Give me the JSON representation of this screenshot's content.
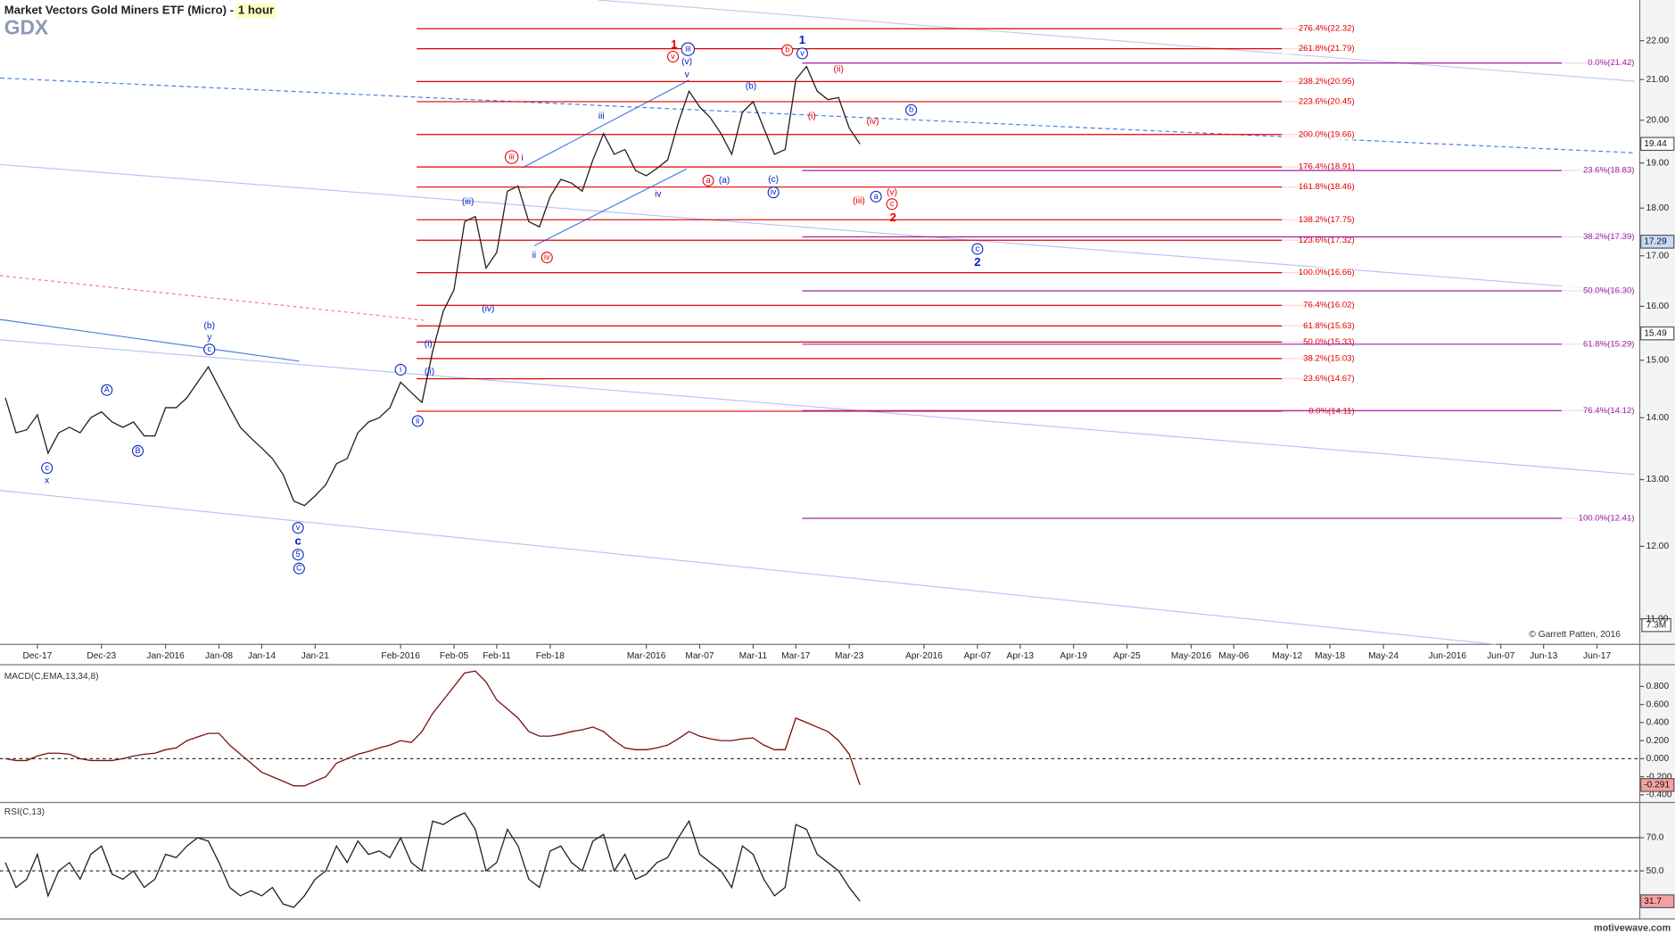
{
  "chart_data": [
    {
      "type": "line",
      "title": "Market Vectors Gold Miners ETF (Micro) -",
      "timeframe": "1 hour",
      "symbol": "GDX",
      "copyright": "© Garrett Patten, 2016",
      "watermark": "motivewave.com",
      "volume_label": "7.3M",
      "color": "#222222",
      "log_scale": true,
      "ylim": [
        10.67,
        23.1
      ],
      "yticks": [
        {
          "value": 22,
          "label": "22.00"
        },
        {
          "value": 21,
          "label": "21.00"
        },
        {
          "value": 20,
          "label": "20.00"
        },
        {
          "value": 19,
          "label": "19.00"
        },
        {
          "value": 18,
          "label": "18.00"
        },
        {
          "value": 17,
          "label": "17.00"
        },
        {
          "value": 16,
          "label": "16.00"
        },
        {
          "value": 15,
          "label": "15.00"
        },
        {
          "value": 14,
          "label": "14.00"
        },
        {
          "value": 13,
          "label": "13.00"
        },
        {
          "value": 12,
          "label": "12.00"
        },
        {
          "value": 11,
          "label": "11.00"
        }
      ],
      "categories": [
        null,
        null,
        null,
        "Dec-17",
        null,
        null,
        null,
        null,
        null,
        "Dec-23",
        null,
        null,
        null,
        null,
        null,
        "Jan-2016",
        null,
        null,
        null,
        null,
        "Jan-08",
        null,
        null,
        null,
        "Jan-14",
        null,
        null,
        null,
        null,
        "Jan-21",
        null,
        null,
        null,
        null,
        null,
        null,
        null,
        "Feb-2016",
        null,
        null,
        null,
        null,
        "Feb-05",
        null,
        null,
        null,
        "Feb-11",
        null,
        null,
        null,
        null,
        "Feb-18",
        null,
        null,
        null,
        null,
        null,
        null,
        null,
        null,
        "Mar-2016",
        null,
        null,
        null,
        null,
        "Mar-07",
        null,
        null,
        null,
        null,
        "Mar-11",
        null,
        null,
        null,
        "Mar-17",
        null,
        null,
        null,
        null,
        "Mar-23",
        null,
        null,
        null,
        null,
        null,
        null,
        "Apr-2016",
        null,
        null,
        null,
        null,
        "Apr-07",
        null,
        null,
        null,
        "Apr-13",
        null,
        null,
        null,
        null,
        "Apr-19",
        null,
        null,
        null,
        null,
        "Apr-25",
        null,
        null,
        null,
        null,
        null,
        "May-2016",
        null,
        null,
        null,
        "May-06",
        null,
        null,
        null,
        null,
        "May-12",
        null,
        null,
        null,
        "May-18",
        null,
        null,
        null,
        null,
        "May-24",
        null,
        null,
        null,
        null,
        null,
        "Jun-2016",
        null,
        null,
        null,
        null,
        "Jun-07",
        null,
        null,
        null,
        "Jun-13",
        null,
        null,
        null,
        null,
        "Jun-17",
        null,
        null,
        null
      ],
      "values": [
        14.34,
        13.75,
        13.8,
        14.05,
        13.42,
        13.75,
        13.84,
        13.75,
        14.0,
        14.1,
        13.93,
        13.84,
        13.93,
        13.7,
        13.7,
        14.17,
        14.17,
        14.34,
        14.61,
        14.88,
        14.52,
        14.17,
        13.84,
        13.66,
        13.5,
        13.33,
        13.08,
        12.67,
        12.6,
        12.75,
        12.92,
        13.25,
        13.33,
        13.75,
        13.93,
        14.0,
        14.17,
        14.61,
        14.43,
        14.26,
        15.16,
        15.91,
        16.32,
        17.71,
        17.82,
        16.75,
        17.07,
        18.37,
        18.48,
        17.71,
        17.6,
        18.25,
        18.63,
        18.55,
        18.37,
        19.07,
        19.68,
        19.2,
        19.31,
        18.83,
        18.71,
        18.88,
        19.07,
        19.94,
        20.71,
        20.32,
        20.06,
        19.68,
        19.2,
        20.19,
        20.45,
        19.81,
        19.2,
        19.31,
        21.0,
        21.33,
        20.71,
        20.5,
        20.55,
        19.81,
        19.44,
        null,
        null,
        null,
        null,
        null,
        null,
        null,
        null,
        null,
        null,
        null,
        null,
        null,
        null,
        null,
        null,
        null,
        null,
        null,
        null,
        null,
        null,
        null,
        null,
        null,
        null,
        null,
        null,
        null,
        null,
        null,
        null,
        null,
        null,
        null,
        null,
        null,
        null,
        null,
        null,
        null,
        null,
        null,
        null,
        null,
        null,
        null,
        null,
        null,
        null,
        null,
        null,
        null,
        null,
        null,
        null,
        null,
        null,
        null,
        null,
        null,
        null,
        null,
        null,
        null,
        null,
        null,
        null,
        null,
        null,
        null,
        null
      ],
      "price_markers": [
        17.29,
        15.49
      ],
      "price_marker_fills": [
        "#c9daf8",
        "#ffffff"
      ],
      "fib_retracement": {
        "color": "#e00000",
        "levels": [
          {
            "value": 22.32,
            "label": "276.4%(22.32)"
          },
          {
            "value": 21.79,
            "label": "261.8%(21.79)"
          },
          {
            "value": 20.95,
            "label": "238.2%(20.95)"
          },
          {
            "value": 20.45,
            "label": "223.6%(20.45)"
          },
          {
            "value": 19.66,
            "label": "200.0%(19.66)"
          },
          {
            "value": 18.91,
            "label": "176.4%(18.91)"
          },
          {
            "value": 18.46,
            "label": "161.8%(18.46)"
          },
          {
            "value": 17.75,
            "label": "138.2%(17.75)"
          },
          {
            "value": 17.32,
            "label": "123.6%(17.32)"
          },
          {
            "value": 16.66,
            "label": "100.0%(16.66)"
          },
          {
            "value": 16.02,
            "label": "76.4%(16.02)"
          },
          {
            "value": 15.63,
            "label": "61.8%(15.63)"
          },
          {
            "value": 15.33,
            "label": "50.0%(15.33)"
          },
          {
            "value": 15.03,
            "label": "38.2%(15.03)"
          },
          {
            "value": 14.67,
            "label": "23.6%(14.67)"
          },
          {
            "value": 14.11,
            "label": "0.0%(14.11)"
          }
        ]
      },
      "fib_projection": {
        "color": "#a020a0",
        "levels": [
          {
            "value": 21.42,
            "label": "0.0%(21.42)"
          },
          {
            "value": 18.83,
            "label": "23.6%(18.83)"
          },
          {
            "value": 17.39,
            "label": "38.2%(17.39)"
          },
          {
            "value": 16.3,
            "label": "50.0%(16.30)"
          },
          {
            "value": 15.29,
            "label": "61.8%(15.29)"
          },
          {
            "value": 14.12,
            "label": "76.4%(14.12)"
          },
          {
            "value": 12.41,
            "label": "100.0%(12.41)"
          }
        ]
      },
      "wave_labels": [
        {
          "text": "1",
          "color": "#e00000",
          "bold": true
        },
        {
          "text": "v",
          "color": "#e00000",
          "circled": true
        },
        {
          "text": "iii",
          "color": "#e00000",
          "circled": true
        },
        {
          "text": "iv",
          "color": "#e00000",
          "circled": true
        },
        {
          "text": "a",
          "color": "#e00000",
          "circled": true
        },
        {
          "text": "b",
          "color": "#e00000",
          "circled": true
        },
        {
          "text": "(ii)",
          "color": "#e00000"
        },
        {
          "text": "(i)",
          "color": "#e00000"
        },
        {
          "text": "(iv)",
          "color": "#e00000"
        },
        {
          "text": "(iii)",
          "color": "#e00000"
        },
        {
          "text": "(v)",
          "color": "#e00000"
        },
        {
          "text": "c",
          "color": "#e00000",
          "circled": true
        },
        {
          "text": "2",
          "color": "#e00000",
          "bold": true
        },
        {
          "text": "1",
          "color": "#0020c0",
          "bold": true
        },
        {
          "text": "v",
          "color": "#0020c0",
          "circled": true
        },
        {
          "text": "iii",
          "color": "#0020c0",
          "circled": true
        },
        {
          "text": "(v)",
          "color": "#0020c0"
        },
        {
          "text": "v",
          "color": "#0020c0"
        },
        {
          "text": "iii",
          "color": "#0020c0"
        },
        {
          "text": "i",
          "color": "#0020c0"
        },
        {
          "text": "ii",
          "color": "#0020c0"
        },
        {
          "text": "iv",
          "color": "#0020c0"
        },
        {
          "text": "(iii)",
          "color": "#0020c0"
        },
        {
          "text": "(iv)",
          "color": "#0020c0"
        },
        {
          "text": "(b)",
          "color": "#0020c0"
        },
        {
          "text": "(a)",
          "color": "#0020c0"
        },
        {
          "text": "(c)",
          "color": "#0020c0"
        },
        {
          "text": "iv",
          "color": "#0020c0",
          "circled": true
        },
        {
          "text": "b",
          "color": "#0020c0",
          "circled": true
        },
        {
          "text": "a",
          "color": "#0020c0",
          "circled": true
        },
        {
          "text": "c",
          "color": "#0020c0",
          "circled": true
        },
        {
          "text": "2",
          "color": "#0020c0",
          "bold": true
        },
        {
          "text": "(b)",
          "color": "#0020c0"
        },
        {
          "text": "y",
          "color": "#0020c0"
        },
        {
          "text": "c",
          "color": "#0020c0",
          "circled": true
        },
        {
          "text": "A",
          "color": "#0020c0",
          "circled": true
        },
        {
          "text": "B",
          "color": "#0020c0",
          "circled": true
        },
        {
          "text": "c",
          "color": "#0020c0",
          "circled": true
        },
        {
          "text": "x",
          "color": "#0020c0"
        },
        {
          "text": "v",
          "color": "#0020c0",
          "circled": true
        },
        {
          "text": "c",
          "color": "#0020c0",
          "bold": true
        },
        {
          "text": "5",
          "color": "#0020c0",
          "circled": true
        },
        {
          "text": "C",
          "color": "#0020c0",
          "circled": true
        },
        {
          "text": "i",
          "color": "#0020c0",
          "circled": true
        },
        {
          "text": "(i)",
          "color": "#0020c0"
        },
        {
          "text": "(ii)",
          "color": "#0020c0"
        },
        {
          "text": "ii",
          "color": "#0020c0",
          "circled": true
        }
      ]
    },
    {
      "type": "line",
      "title": "MACD(C,EMA,13,34,8)",
      "color": "#7a1010",
      "ylim": [
        -0.473,
        1.041
      ],
      "yticks": [
        {
          "value": 0.8,
          "label": "0.800"
        },
        {
          "value": 0.6,
          "label": "0.600"
        },
        {
          "value": 0.4,
          "label": "0.400"
        },
        {
          "value": 0.2,
          "label": "0.200"
        },
        {
          "value": 0,
          "label": "0.000"
        },
        {
          "value": -0.2,
          "label": "-0.200"
        },
        {
          "value": -0.4,
          "label": "-0.400"
        }
      ],
      "zero_line": true,
      "values": [
        0.0,
        -0.02,
        -0.02,
        0.03,
        0.06,
        0.06,
        0.05,
        0.0,
        -0.02,
        -0.02,
        -0.02,
        0.0,
        0.03,
        0.05,
        0.06,
        0.1,
        0.12,
        0.2,
        0.24,
        0.28,
        0.28,
        0.15,
        0.05,
        -0.05,
        -0.15,
        -0.2,
        -0.25,
        -0.3,
        -0.3,
        -0.25,
        -0.2,
        -0.05,
        0.0,
        0.05,
        0.08,
        0.12,
        0.15,
        0.2,
        0.18,
        0.3,
        0.5,
        0.65,
        0.8,
        0.95,
        0.97,
        0.85,
        0.65,
        0.55,
        0.45,
        0.3,
        0.25,
        0.25,
        0.27,
        0.3,
        0.32,
        0.35,
        0.3,
        0.2,
        0.12,
        0.1,
        0.1,
        0.12,
        0.15,
        0.22,
        0.3,
        0.25,
        0.22,
        0.2,
        0.2,
        0.22,
        0.23,
        0.15,
        0.1,
        0.1,
        0.45,
        0.4,
        0.35,
        0.3,
        0.2,
        0.05,
        -0.291
      ]
    },
    {
      "type": "line",
      "title": "RSI(C,13)",
      "color": "#222222",
      "ylim": [
        21,
        90.6
      ],
      "yticks": [
        {
          "value": 70,
          "label": "70.0"
        },
        {
          "value": 50,
          "label": "50.0"
        }
      ],
      "ytick_styles": [
        "solid",
        "dashed"
      ],
      "values": [
        55,
        40,
        45,
        60,
        35,
        50,
        55,
        45,
        60,
        65,
        48,
        45,
        50,
        40,
        45,
        60,
        58,
        65,
        70,
        68,
        55,
        40,
        35,
        38,
        35,
        40,
        30,
        28,
        35,
        45,
        50,
        65,
        55,
        68,
        60,
        62,
        58,
        70,
        55,
        50,
        80,
        78,
        82,
        85,
        75,
        50,
        55,
        75,
        65,
        45,
        40,
        62,
        65,
        55,
        50,
        68,
        72,
        50,
        60,
        45,
        48,
        55,
        58,
        70,
        80,
        60,
        55,
        50,
        40,
        65,
        60,
        45,
        35,
        40,
        78,
        75,
        60,
        55,
        50,
        40,
        31.7
      ]
    }
  ]
}
